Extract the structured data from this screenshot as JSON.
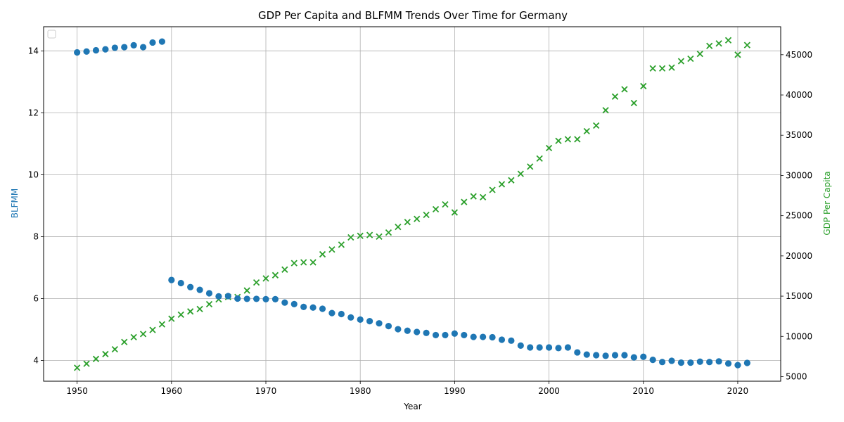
{
  "chart_data": {
    "type": "scatter",
    "title": "GDP Per Capita and BLFMM Trends Over Time for Germany",
    "xlabel": "Year",
    "ylabel_left": "BLFMM",
    "ylabel_right": "GDP Per Capita",
    "xlim": [
      1946.45,
      2024.55
    ],
    "ylim_left": [
      3.33,
      14.78
    ],
    "ylim_right": [
      4430,
      48480
    ],
    "x_ticks": [
      1950,
      1960,
      1970,
      1980,
      1990,
      2000,
      2010,
      2020
    ],
    "y_ticks_left": [
      4,
      6,
      8,
      10,
      12,
      14
    ],
    "y_ticks_right": [
      5000,
      10000,
      15000,
      20000,
      25000,
      30000,
      35000,
      40000,
      45000
    ],
    "grid": true,
    "legend": "top-left, empty",
    "colors": {
      "blfmm": "#1f77b4",
      "gdp": "#2ca02c"
    },
    "series": [
      {
        "name": "BLFMM",
        "axis": "left",
        "marker": "circle",
        "points": [
          [
            1950,
            13.95
          ],
          [
            1951,
            13.98
          ],
          [
            1952,
            14.02
          ],
          [
            1953,
            14.05
          ],
          [
            1954,
            14.1
          ],
          [
            1955,
            14.12
          ],
          [
            1956,
            14.18
          ],
          [
            1957,
            14.12
          ],
          [
            1958,
            14.27
          ],
          [
            1959,
            14.3
          ],
          [
            1960,
            6.6
          ],
          [
            1961,
            6.5
          ],
          [
            1962,
            6.37
          ],
          [
            1963,
            6.28
          ],
          [
            1964,
            6.17
          ],
          [
            1965,
            6.07
          ],
          [
            1966,
            6.08
          ],
          [
            1967,
            6.0
          ],
          [
            1968,
            5.99
          ],
          [
            1969,
            5.99
          ],
          [
            1970,
            5.98
          ],
          [
            1971,
            5.98
          ],
          [
            1972,
            5.87
          ],
          [
            1973,
            5.82
          ],
          [
            1974,
            5.73
          ],
          [
            1975,
            5.71
          ],
          [
            1976,
            5.67
          ],
          [
            1977,
            5.53
          ],
          [
            1978,
            5.5
          ],
          [
            1979,
            5.39
          ],
          [
            1980,
            5.32
          ],
          [
            1981,
            5.27
          ],
          [
            1982,
            5.2
          ],
          [
            1983,
            5.11
          ],
          [
            1984,
            5.01
          ],
          [
            1985,
            4.96
          ],
          [
            1986,
            4.92
          ],
          [
            1987,
            4.89
          ],
          [
            1988,
            4.82
          ],
          [
            1989,
            4.82
          ],
          [
            1990,
            4.87
          ],
          [
            1991,
            4.82
          ],
          [
            1992,
            4.76
          ],
          [
            1993,
            4.76
          ],
          [
            1994,
            4.75
          ],
          [
            1995,
            4.67
          ],
          [
            1996,
            4.64
          ],
          [
            1997,
            4.48
          ],
          [
            1998,
            4.42
          ],
          [
            1999,
            4.42
          ],
          [
            2000,
            4.42
          ],
          [
            2001,
            4.4
          ],
          [
            2002,
            4.42
          ],
          [
            2003,
            4.26
          ],
          [
            2004,
            4.19
          ],
          [
            2005,
            4.17
          ],
          [
            2006,
            4.15
          ],
          [
            2007,
            4.17
          ],
          [
            2008,
            4.17
          ],
          [
            2009,
            4.1
          ],
          [
            2010,
            4.12
          ],
          [
            2011,
            4.02
          ],
          [
            2012,
            3.95
          ],
          [
            2013,
            3.99
          ],
          [
            2014,
            3.93
          ],
          [
            2015,
            3.93
          ],
          [
            2016,
            3.96
          ],
          [
            2017,
            3.95
          ],
          [
            2018,
            3.97
          ],
          [
            2019,
            3.9
          ],
          [
            2020,
            3.85
          ],
          [
            2021,
            3.92
          ]
        ]
      },
      {
        "name": "GDP Per Capita",
        "axis": "right",
        "marker": "x",
        "points": [
          [
            1950,
            6100
          ],
          [
            1951,
            6600
          ],
          [
            1952,
            7200
          ],
          [
            1953,
            7800
          ],
          [
            1954,
            8400
          ],
          [
            1955,
            9300
          ],
          [
            1956,
            9900
          ],
          [
            1957,
            10300
          ],
          [
            1958,
            10800
          ],
          [
            1959,
            11500
          ],
          [
            1960,
            12200
          ],
          [
            1961,
            12700
          ],
          [
            1962,
            13100
          ],
          [
            1963,
            13400
          ],
          [
            1964,
            14000
          ],
          [
            1965,
            14600
          ],
          [
            1966,
            14900
          ],
          [
            1967,
            14900
          ],
          [
            1968,
            15700
          ],
          [
            1969,
            16700
          ],
          [
            1970,
            17200
          ],
          [
            1971,
            17600
          ],
          [
            1972,
            18300
          ],
          [
            1973,
            19100
          ],
          [
            1974,
            19200
          ],
          [
            1975,
            19200
          ],
          [
            1976,
            20200
          ],
          [
            1977,
            20800
          ],
          [
            1978,
            21400
          ],
          [
            1979,
            22300
          ],
          [
            1980,
            22500
          ],
          [
            1981,
            22600
          ],
          [
            1982,
            22400
          ],
          [
            1983,
            22900
          ],
          [
            1984,
            23600
          ],
          [
            1985,
            24200
          ],
          [
            1986,
            24600
          ],
          [
            1987,
            25100
          ],
          [
            1988,
            25800
          ],
          [
            1989,
            26400
          ],
          [
            1990,
            25400
          ],
          [
            1991,
            26700
          ],
          [
            1992,
            27400
          ],
          [
            1993,
            27300
          ],
          [
            1994,
            28200
          ],
          [
            1995,
            28900
          ],
          [
            1996,
            29400
          ],
          [
            1997,
            30200
          ],
          [
            1998,
            31100
          ],
          [
            1999,
            32100
          ],
          [
            2000,
            33400
          ],
          [
            2001,
            34300
          ],
          [
            2002,
            34500
          ],
          [
            2003,
            34500
          ],
          [
            2004,
            35500
          ],
          [
            2005,
            36200
          ],
          [
            2006,
            38100
          ],
          [
            2007,
            39800
          ],
          [
            2008,
            40700
          ],
          [
            2009,
            39000
          ],
          [
            2010,
            41100
          ],
          [
            2011,
            43300
          ],
          [
            2012,
            43300
          ],
          [
            2013,
            43400
          ],
          [
            2014,
            44200
          ],
          [
            2015,
            44500
          ],
          [
            2016,
            45100
          ],
          [
            2017,
            46100
          ],
          [
            2018,
            46400
          ],
          [
            2019,
            46800
          ],
          [
            2020,
            45000
          ],
          [
            2021,
            46200
          ]
        ]
      }
    ]
  }
}
